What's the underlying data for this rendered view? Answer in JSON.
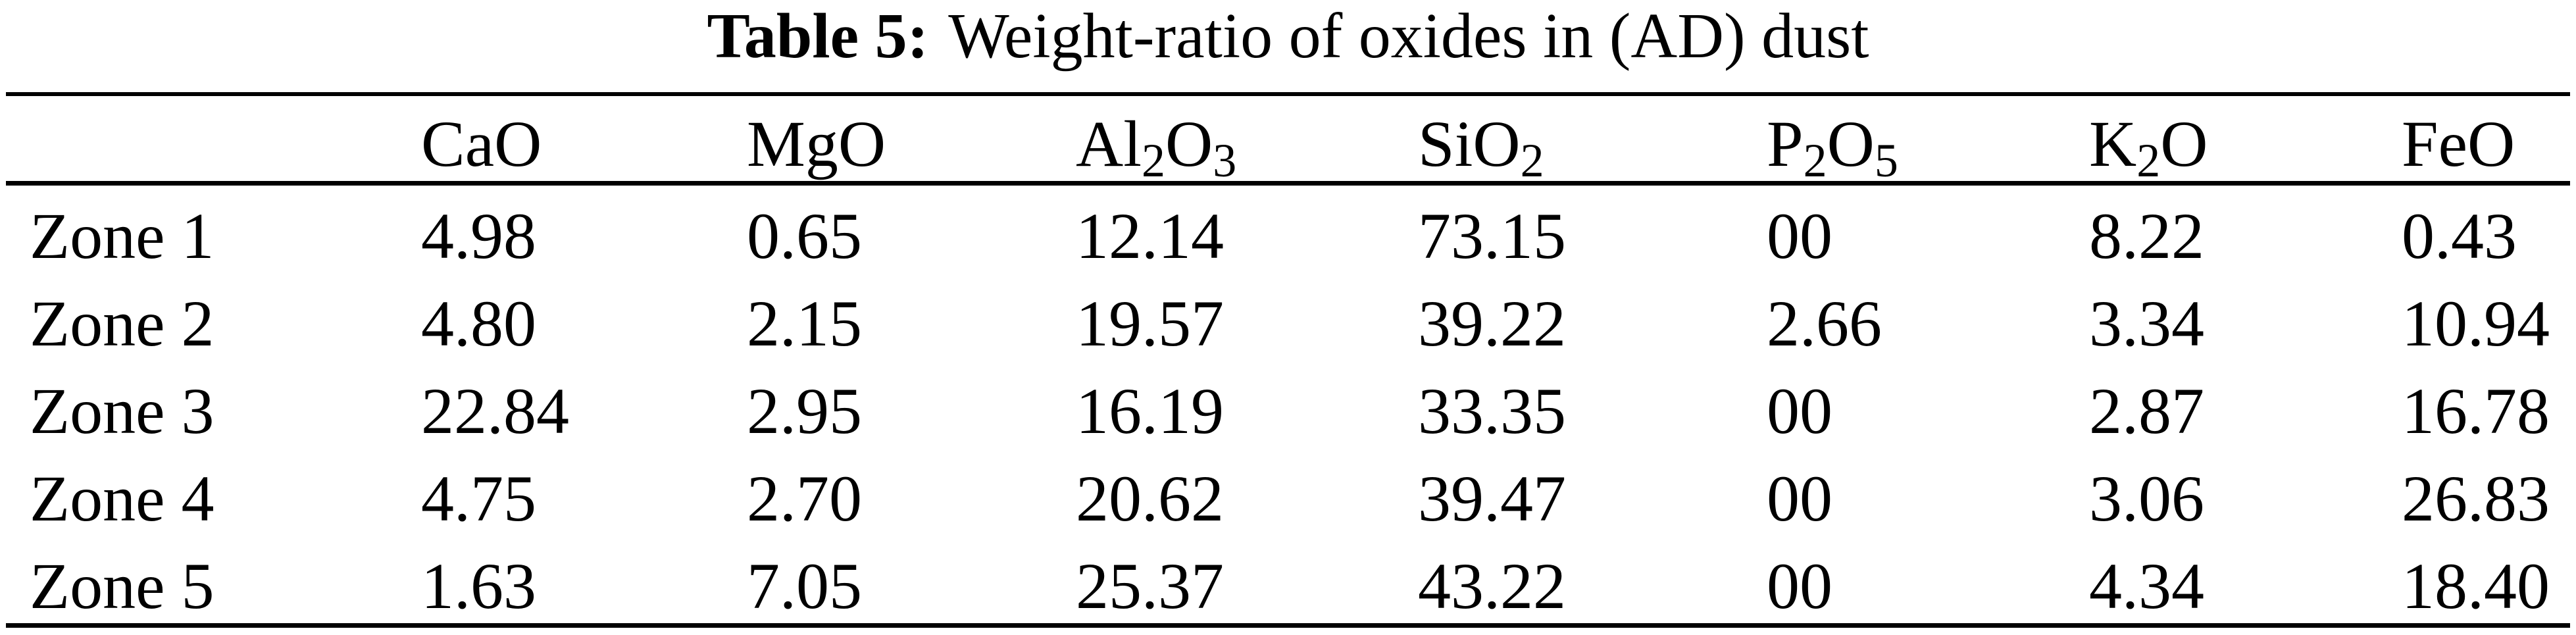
{
  "caption": {
    "label": "Table 5:",
    "text": "Weight-ratio of oxides in (AD) dust"
  },
  "table": {
    "columns": [
      {
        "name": "CaO",
        "p0": "CaO",
        "s0": "",
        "p1": "",
        "s1": ""
      },
      {
        "name": "MgO",
        "p0": "MgO",
        "s0": "",
        "p1": "",
        "s1": ""
      },
      {
        "name": "Al2O3",
        "p0": "Al",
        "s0": "2",
        "p1": "O",
        "s1": "3"
      },
      {
        "name": "SiO2",
        "p0": "SiO",
        "s0": "2",
        "p1": "",
        "s1": ""
      },
      {
        "name": "P2O5",
        "p0": "P",
        "s0": "2",
        "p1": "O",
        "s1": "5"
      },
      {
        "name": "K2O",
        "p0": "K",
        "s0": "2",
        "p1": "O",
        "s1": ""
      },
      {
        "name": "FeO",
        "p0": "FeO",
        "s0": "",
        "p1": "",
        "s1": ""
      }
    ],
    "rows": [
      {
        "label": "Zone 1",
        "values": [
          "4.98",
          "0.65",
          "12.14",
          "73.15",
          "00",
          "8.22",
          "0.43"
        ]
      },
      {
        "label": "Zone 2",
        "values": [
          "4.80",
          "2.15",
          "19.57",
          "39.22",
          "2.66",
          "3.34",
          "10.94"
        ]
      },
      {
        "label": "Zone 3",
        "values": [
          "22.84",
          "2.95",
          "16.19",
          "33.35",
          "00",
          "2.87",
          "16.78"
        ]
      },
      {
        "label": "Zone 4",
        "values": [
          "4.75",
          "2.70",
          "20.62",
          "39.47",
          "00",
          "3.06",
          "26.83"
        ]
      },
      {
        "label": "Zone 5",
        "values": [
          "1.63",
          "7.05",
          "25.37",
          "43.22",
          "00",
          "4.34",
          "18.40"
        ]
      }
    ]
  },
  "colors": {
    "text": "#000000",
    "background": "#ffffff",
    "rule": "#000000"
  },
  "chart_data": {
    "type": "table",
    "title": "Table 5: Weight-ratio of oxides in (AD) dust",
    "columns": [
      "",
      "CaO",
      "MgO",
      "Al2O3",
      "SiO2",
      "P2O5",
      "K2O",
      "FeO"
    ],
    "rows": [
      [
        "Zone 1",
        4.98,
        0.65,
        12.14,
        73.15,
        "00",
        8.22,
        0.43
      ],
      [
        "Zone 2",
        4.8,
        2.15,
        19.57,
        39.22,
        2.66,
        3.34,
        10.94
      ],
      [
        "Zone 3",
        22.84,
        2.95,
        16.19,
        33.35,
        "00",
        2.87,
        16.78
      ],
      [
        "Zone 4",
        4.75,
        2.7,
        20.62,
        39.47,
        "00",
        3.06,
        26.83
      ],
      [
        "Zone 5",
        1.63,
        7.05,
        25.37,
        43.22,
        "00",
        4.34,
        18.4
      ]
    ]
  }
}
